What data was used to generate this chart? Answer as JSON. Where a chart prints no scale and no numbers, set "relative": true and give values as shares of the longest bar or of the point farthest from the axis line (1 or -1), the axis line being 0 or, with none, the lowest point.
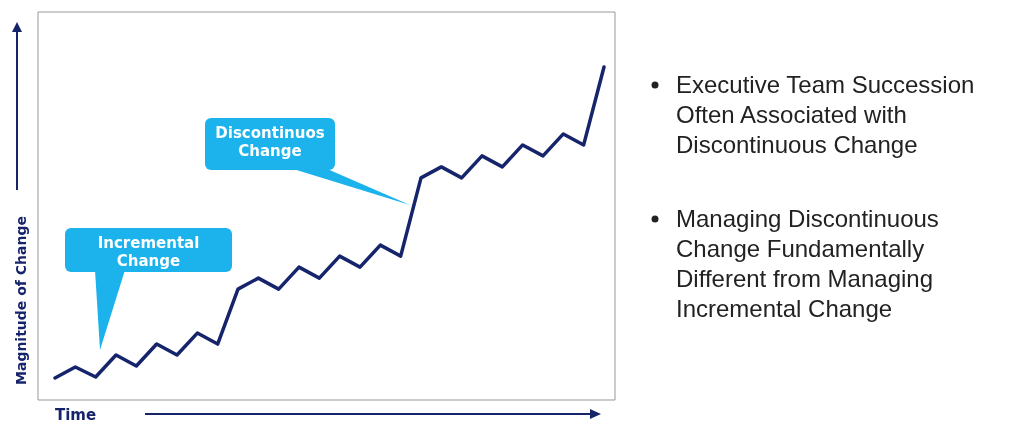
{
  "chart_data": {
    "type": "line",
    "relative": true,
    "xlabel": "Time",
    "ylabel": "Magnitude of Change",
    "categories": [
      null,
      null,
      null,
      null,
      null,
      null,
      null,
      null,
      null,
      null,
      null,
      null,
      null,
      null,
      null,
      null,
      null,
      null,
      null,
      null,
      null,
      null,
      null,
      null,
      null,
      null,
      null,
      null
    ],
    "series": [
      {
        "color": "#16256b",
        "values": [
          0.066,
          0.099,
          0.069,
          0.135,
          0.102,
          0.168,
          0.135,
          0.201,
          0.168,
          0.333,
          0.366,
          0.333,
          0.399,
          0.366,
          0.432,
          0.399,
          0.465,
          0.432,
          0.667,
          0.7,
          0.667,
          0.733,
          0.7,
          0.766,
          0.733,
          0.799,
          0.766,
          1
        ]
      }
    ],
    "annotations": [
      "Incremental Change",
      "Discontinuos Change",
      "Executive Team Succession Often Associated with Discontinuous Change",
      "Managing Discontinuous Change Fundamentally Different from Managing Incremental Change"
    ]
  }
}
